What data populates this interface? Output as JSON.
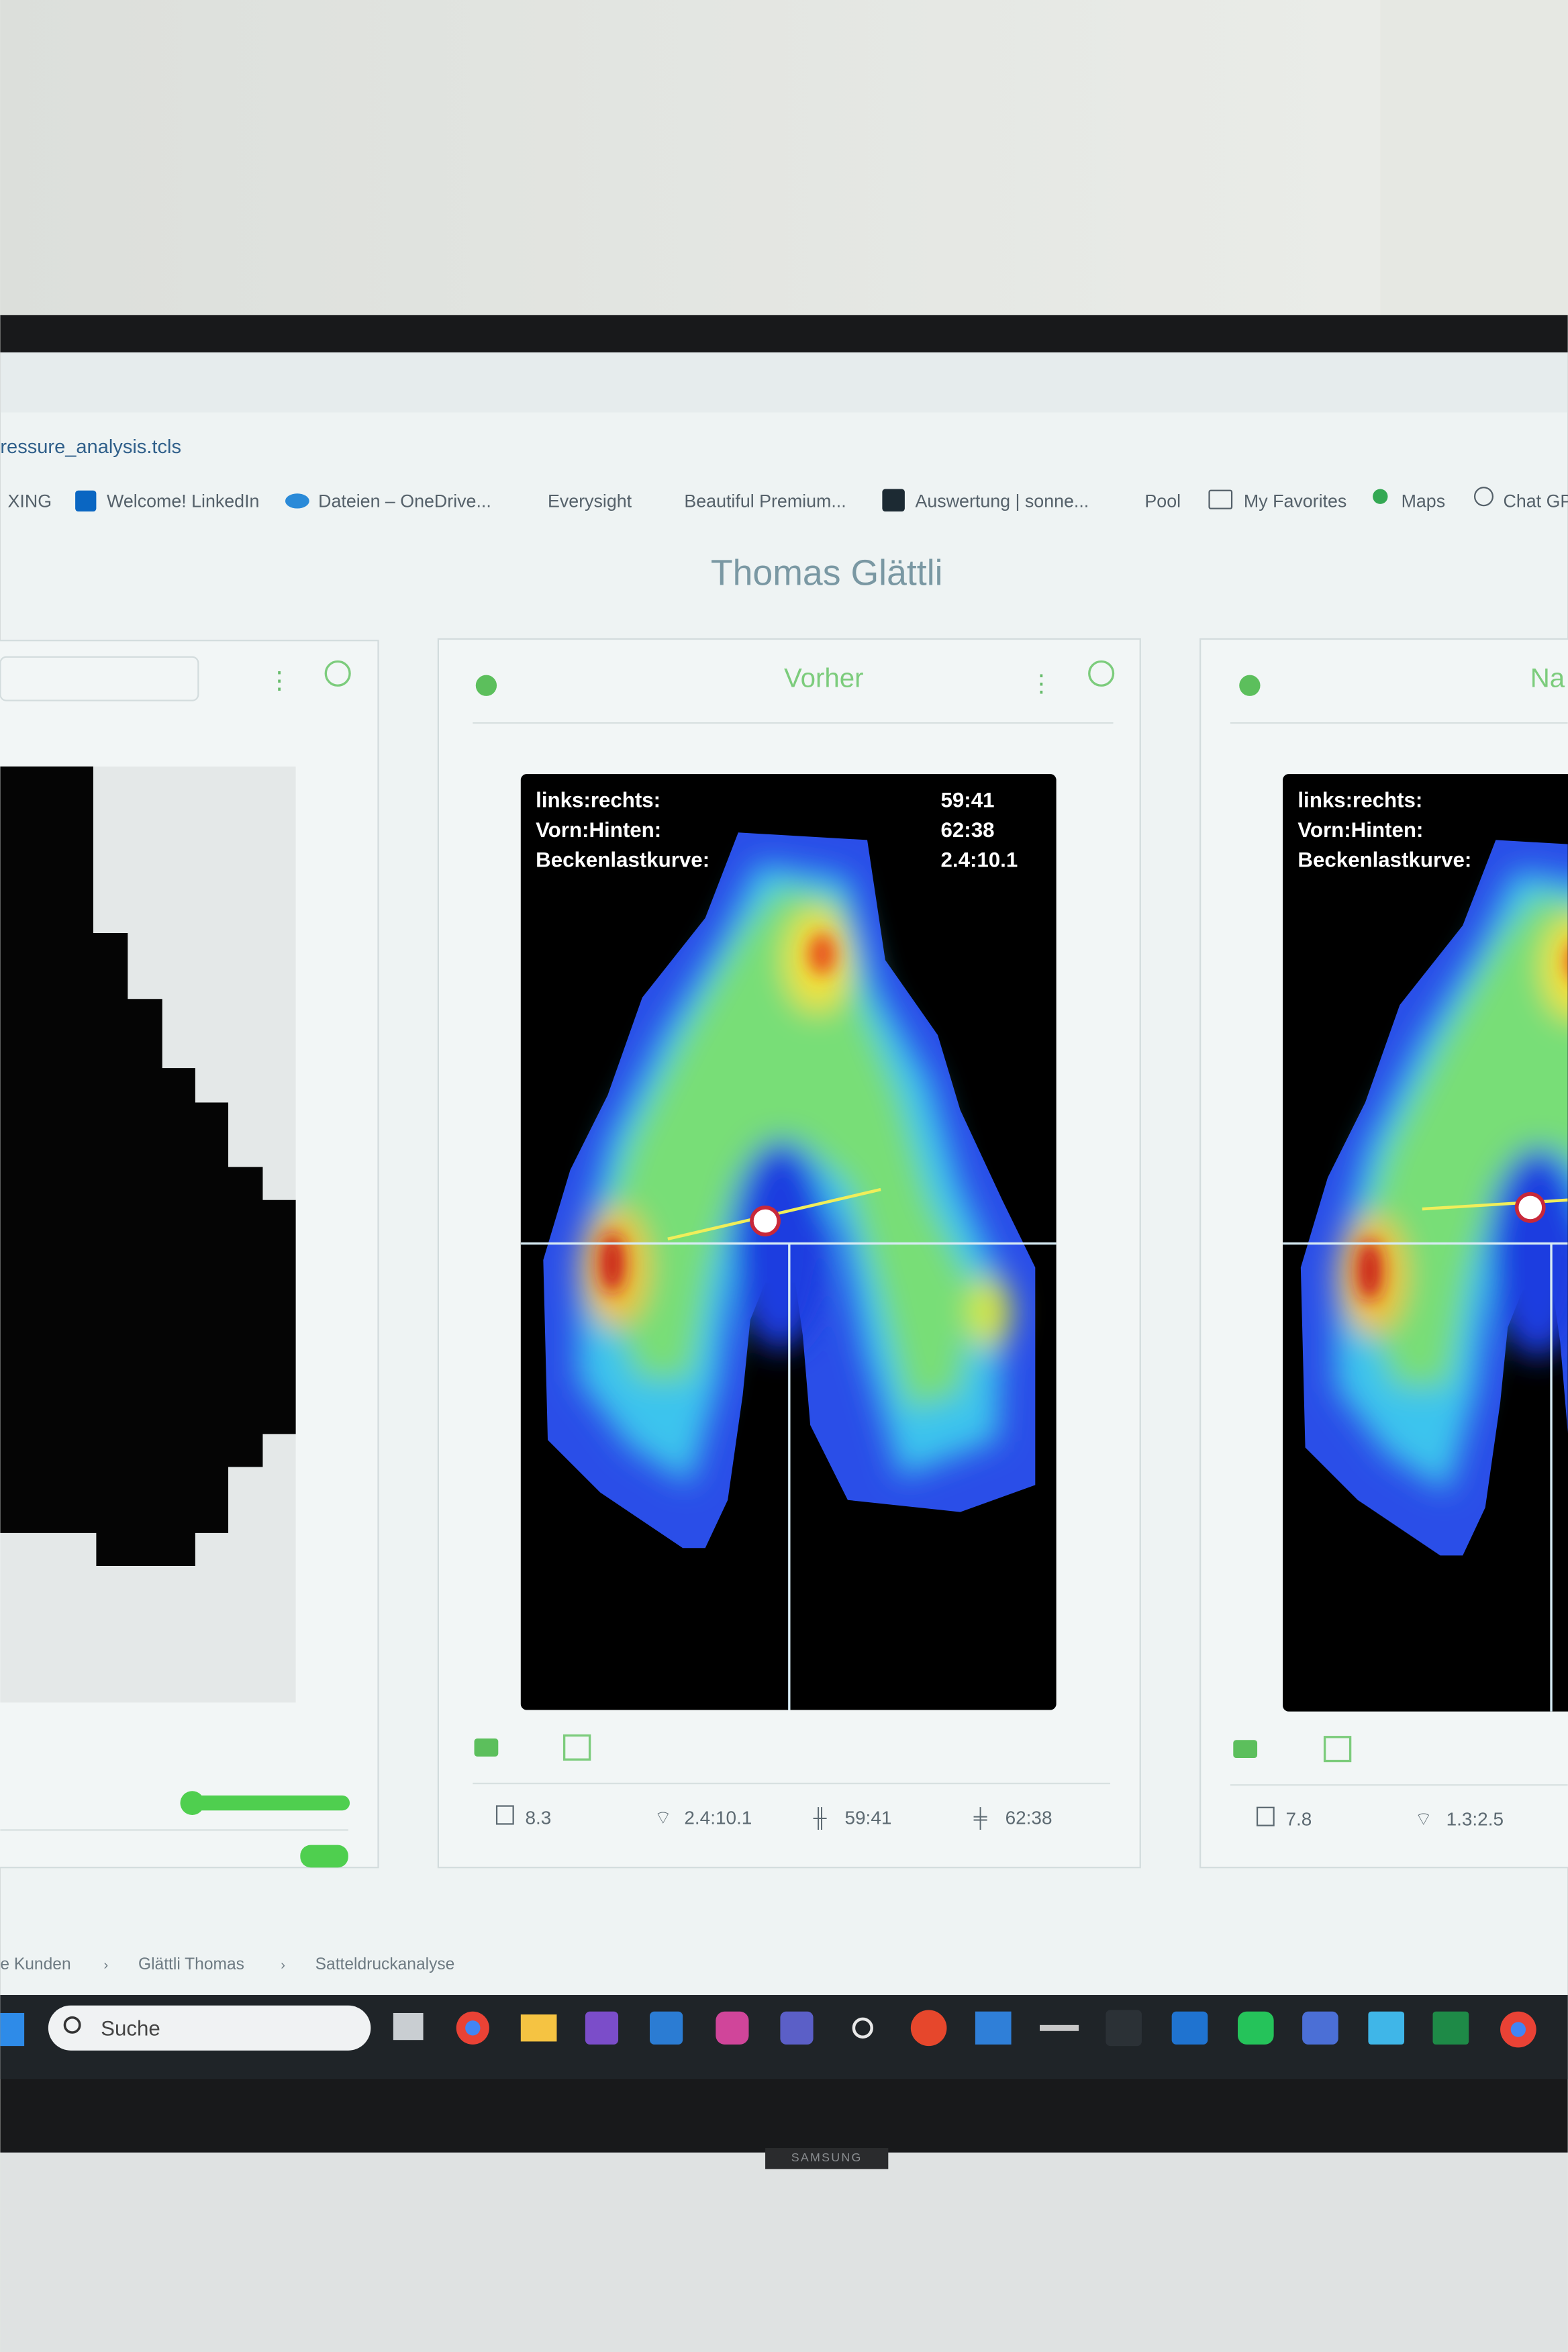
{
  "browser": {
    "url": "ressure_analysis.tcls",
    "bookmarks": [
      "XING",
      "Welcome! LinkedIn",
      "Dateien – OneDrive...",
      "Everysight",
      "Beautiful Premium...",
      "Auswertung | sonne...",
      "Pool",
      "My Favorites",
      "Maps",
      "Chat GP"
    ]
  },
  "page": {
    "title": "Thomas Glättli",
    "panels": [
      {
        "title": "Vorher",
        "overlay": {
          "labels": [
            "links:rechts:",
            "Vorn:Hinten:",
            "Beckenlastkurve:"
          ],
          "values": [
            "59:41",
            "62:38",
            "2.4:10.1"
          ]
        },
        "stats": [
          "8.3",
          "2.4:10.1",
          "59:41",
          "62:38"
        ]
      },
      {
        "title": "Na",
        "overlay": {
          "labels": [
            "links:rechts:",
            "Vorn:Hinten:",
            "Beckenlastkurve:"
          ]
        },
        "stats": [
          "7.8",
          "1.3:2.5"
        ]
      }
    ]
  },
  "breadcrumb": [
    "e Kunden",
    "Glättli Thomas",
    "Satteldruckanalyse"
  ],
  "taskbar": {
    "search": "Suche"
  },
  "monitor": {
    "brand": "SAMSUNG"
  }
}
